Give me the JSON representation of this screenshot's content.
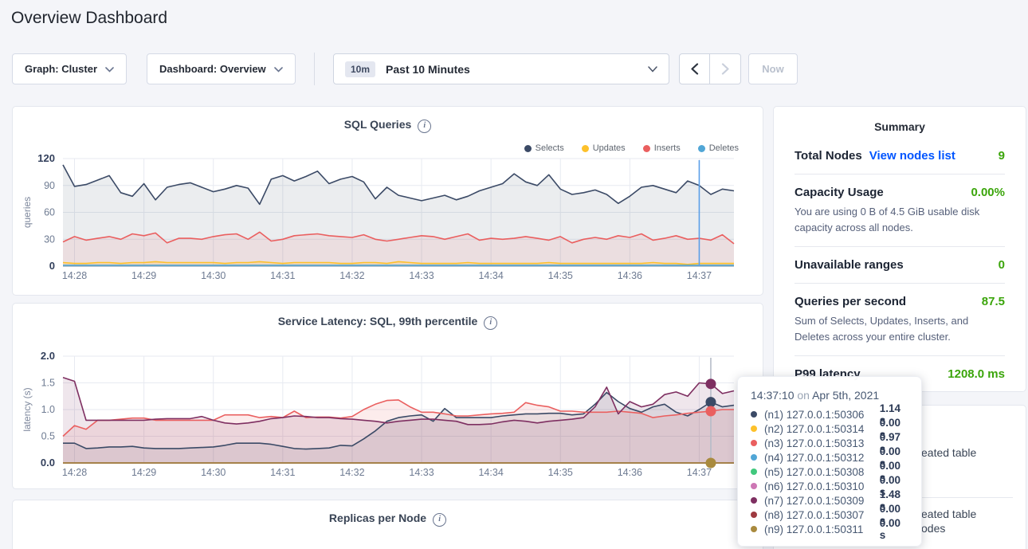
{
  "page": {
    "title": "Overview Dashboard"
  },
  "controls": {
    "graph_label": "Graph: Cluster",
    "dashboard_label": "Dashboard: Overview",
    "range_badge": "10m",
    "range_label": "Past 10 Minutes",
    "now_label": "Now"
  },
  "summary": {
    "title": "Summary",
    "total_nodes_label": "Total Nodes",
    "view_nodes_link": "View nodes list",
    "total_nodes_value": "9",
    "capacity_label": "Capacity Usage",
    "capacity_value": "0.00%",
    "capacity_desc": "You are using 0 B of 4.5 GiB usable disk capacity across all nodes.",
    "unavailable_label": "Unavailable ranges",
    "unavailable_value": "0",
    "qps_label": "Queries per second",
    "qps_value": "87.5",
    "qps_desc": "Sum of Selects, Updates, Inserts, and Deletes across your entire cluster.",
    "p99_label": "P99 latency",
    "p99_value": "1208.0 ms",
    "accent_green": "#3ba50b",
    "link_blue": "#0055ff"
  },
  "tooltip": {
    "time": "14:37:10",
    "conj": "on",
    "date": "Apr 5th, 2021",
    "rows": [
      {
        "color": "#3b4a66",
        "node": "(n1) 127.0.0.1:50306",
        "value": "1.14 s"
      },
      {
        "color": "#fdc12b",
        "node": "(n2) 127.0.0.1:50314",
        "value": "0.00 s"
      },
      {
        "color": "#ea5f5f",
        "node": "(n3) 127.0.0.1:50313",
        "value": "0.97 s"
      },
      {
        "color": "#51a6d6",
        "node": "(n4) 127.0.0.1:50312",
        "value": "0.00 s"
      },
      {
        "color": "#41c87d",
        "node": "(n5) 127.0.0.1:50308",
        "value": "0.00 s"
      },
      {
        "color": "#cd77b4",
        "node": "(n6) 127.0.0.1:50310",
        "value": "0.00 s"
      },
      {
        "color": "#7e2f61",
        "node": "(n7) 127.0.0.1:50309",
        "value": "1.48 s"
      },
      {
        "color": "#9e3a40",
        "node": "(n8) 127.0.0.1:50307",
        "value": "0.00 s"
      },
      {
        "color": "#a98a3e",
        "node": "(n9) 127.0.0.1:50311",
        "value": "0.00 s"
      }
    ]
  },
  "events": {
    "fragments": [
      "eated table",
      "eated table",
      "odes"
    ]
  },
  "chart_data": [
    {
      "type": "line",
      "title": "SQL Queries",
      "ylabel": "queries",
      "ylim": [
        0,
        120
      ],
      "yticks": [
        0,
        30,
        60,
        90,
        120
      ],
      "ytick_labels": [
        "0",
        "30",
        "60",
        "90",
        "120"
      ],
      "x_start": "14:27:50",
      "x_step_seconds": 10,
      "x_ticks": [
        {
          "i": 1,
          "label": "14:28"
        },
        {
          "i": 7,
          "label": "14:29"
        },
        {
          "i": 13,
          "label": "14:30"
        },
        {
          "i": 19,
          "label": "14:31"
        },
        {
          "i": 25,
          "label": "14:32"
        },
        {
          "i": 31,
          "label": "14:33"
        },
        {
          "i": 37,
          "label": "14:34"
        },
        {
          "i": 43,
          "label": "14:35"
        },
        {
          "i": 49,
          "label": "14:36"
        },
        {
          "i": 55,
          "label": "14:37"
        }
      ],
      "legend_position": "top-right",
      "grid": true,
      "cursor": {
        "index": 55,
        "color": "#5b9fe8"
      },
      "series": [
        {
          "name": "Selects",
          "color": "#3b4a66",
          "fill_opacity": 0.1,
          "values": [
            113,
            89,
            91,
            96,
            101,
            82,
            78,
            92,
            74,
            88,
            91,
            93,
            88,
            83,
            86,
            90,
            87,
            69,
            97,
            101,
            95,
            100,
            106,
            92,
            97,
            100,
            94,
            75,
            88,
            79,
            76,
            73,
            76,
            79,
            74,
            78,
            84,
            88,
            92,
            103,
            94,
            90,
            102,
            86,
            80,
            82,
            85,
            80,
            70,
            78,
            88,
            90,
            86,
            82,
            95,
            90,
            80,
            86,
            84
          ]
        },
        {
          "name": "Updates",
          "color": "#fdc12b",
          "fill_opacity": 0.2,
          "values": [
            4,
            3,
            3,
            4,
            4,
            3,
            4,
            4,
            5,
            4,
            4,
            4,
            4,
            4,
            3,
            4,
            4,
            5,
            4,
            3,
            4,
            4,
            4,
            4,
            3,
            3,
            4,
            4,
            3,
            5,
            4,
            3,
            3,
            3,
            3,
            4,
            3,
            3,
            3,
            3,
            3,
            3,
            4,
            3,
            3,
            3,
            3,
            3,
            3,
            3,
            3,
            4,
            3,
            3,
            2,
            3,
            3,
            3,
            3
          ]
        },
        {
          "name": "Inserts",
          "color": "#ea5f5f",
          "fill_opacity": 0.1,
          "values": [
            27,
            33,
            29,
            31,
            33,
            30,
            36,
            34,
            37,
            26,
            31,
            31,
            30,
            33,
            35,
            36,
            30,
            38,
            28,
            30,
            34,
            35,
            36,
            34,
            33,
            32,
            35,
            30,
            28,
            30,
            32,
            34,
            33,
            30,
            33,
            36,
            29,
            31,
            30,
            31,
            33,
            31,
            29,
            33,
            26,
            30,
            32,
            30,
            34,
            32,
            36,
            29,
            31,
            34,
            30,
            31,
            29,
            35,
            25
          ]
        },
        {
          "name": "Deletes",
          "color": "#51a6d6",
          "fill_opacity": 0,
          "flat": 1
        }
      ]
    },
    {
      "type": "line",
      "title": "Service Latency: SQL, 99th percentile",
      "ylabel": "latency (s)",
      "ylim": [
        0,
        2.0
      ],
      "yticks": [
        0,
        0.5,
        1.0,
        1.5,
        2.0
      ],
      "ytick_labels": [
        "0.0",
        "0.5",
        "1.0",
        "1.5",
        "2.0"
      ],
      "x_start": "14:27:50",
      "x_step_seconds": 10,
      "x_ticks": [
        {
          "i": 1,
          "label": "14:28"
        },
        {
          "i": 7,
          "label": "14:29"
        },
        {
          "i": 13,
          "label": "14:30"
        },
        {
          "i": 19,
          "label": "14:31"
        },
        {
          "i": 25,
          "label": "14:32"
        },
        {
          "i": 31,
          "label": "14:33"
        },
        {
          "i": 37,
          "label": "14:34"
        },
        {
          "i": 43,
          "label": "14:35"
        },
        {
          "i": 49,
          "label": "14:36"
        },
        {
          "i": 55,
          "label": "14:37"
        }
      ],
      "grid": true,
      "cursor": {
        "index": 56,
        "color": "#b6bcc8",
        "dots": [
          {
            "color": "#7e2f61",
            "value": 1.48
          },
          {
            "color": "#3b4a66",
            "value": 1.14
          },
          {
            "color": "#ea5f5f",
            "value": 0.97
          },
          {
            "color": "#a98a3e",
            "value": 0.0
          }
        ]
      },
      "series": [
        {
          "name": "(n1) 127.0.0.1:50306",
          "color": "#3b4a66",
          "fill_opacity": 0.1,
          "values": [
            0.37,
            0.37,
            0.27,
            0.28,
            0.3,
            0.3,
            0.31,
            0.28,
            0.27,
            0.27,
            0.27,
            0.28,
            0.29,
            0.3,
            0.33,
            0.37,
            0.37,
            0.37,
            0.35,
            0.31,
            0.27,
            0.26,
            0.27,
            0.28,
            0.33,
            0.32,
            0.45,
            0.6,
            0.78,
            0.85,
            0.88,
            0.9,
            0.78,
            1.02,
            0.85,
            0.85,
            0.85,
            0.85,
            0.88,
            0.9,
            0.92,
            0.92,
            0.93,
            0.93,
            0.9,
            0.92,
            1.1,
            1.32,
            1.15,
            1.02,
            0.95,
            1.05,
            1.1,
            0.95,
            0.88,
            1.0,
            1.14,
            1.05,
            1.08
          ]
        },
        {
          "name": "(n2) 127.0.0.1:50314",
          "color": "#fdc12b",
          "fill_opacity": 0,
          "flat": 0
        },
        {
          "name": "(n3) 127.0.0.1:50313",
          "color": "#ea5f5f",
          "fill_opacity": 0.12,
          "values": [
            0.5,
            0.7,
            0.63,
            0.8,
            0.8,
            0.82,
            0.84,
            0.84,
            0.8,
            0.8,
            0.8,
            0.8,
            0.8,
            0.8,
            0.9,
            0.9,
            0.9,
            0.85,
            0.87,
            0.85,
            0.97,
            0.85,
            0.86,
            0.86,
            0.84,
            0.87,
            1.0,
            1.1,
            1.17,
            1.18,
            1.05,
            0.95,
            0.95,
            0.92,
            0.88,
            0.88,
            0.9,
            0.92,
            0.93,
            0.95,
            1.13,
            1.08,
            1.05,
            0.97,
            0.97,
            0.95,
            0.95,
            0.95,
            0.97,
            0.95,
            0.93,
            0.85,
            0.88,
            0.9,
            0.93,
            0.95,
            0.97,
            1.0,
            1.0
          ]
        },
        {
          "name": "(n4) 127.0.0.1:50312",
          "color": "#51a6d6",
          "fill_opacity": 0,
          "flat": 0
        },
        {
          "name": "(n5) 127.0.0.1:50308",
          "color": "#41c87d",
          "fill_opacity": 0,
          "flat": 0
        },
        {
          "name": "(n6) 127.0.0.1:50310",
          "color": "#cd77b4",
          "fill_opacity": 0,
          "flat": 0
        },
        {
          "name": "(n7) 127.0.0.1:50309",
          "color": "#7e2f61",
          "fill_opacity": 0.12,
          "values": [
            1.6,
            1.53,
            0.8,
            0.8,
            0.8,
            0.8,
            0.8,
            0.8,
            0.82,
            0.83,
            0.83,
            0.83,
            0.87,
            0.8,
            0.75,
            0.73,
            0.75,
            0.78,
            0.83,
            0.85,
            0.88,
            0.87,
            0.85,
            0.85,
            0.83,
            0.82,
            0.8,
            0.78,
            0.75,
            0.78,
            0.8,
            0.82,
            0.82,
            0.8,
            0.78,
            0.72,
            0.72,
            0.73,
            0.77,
            0.8,
            0.78,
            0.75,
            0.78,
            0.8,
            0.82,
            0.85,
            1.05,
            1.42,
            0.92,
            1.15,
            1.05,
            1.1,
            1.28,
            1.33,
            1.25,
            1.5,
            1.48,
            1.3,
            1.35
          ]
        },
        {
          "name": "(n8) 127.0.0.1:50307",
          "color": "#9e3a40",
          "fill_opacity": 0,
          "flat": 0
        },
        {
          "name": "(n9) 127.0.0.1:50311",
          "color": "#a98a3e",
          "fill_opacity": 0,
          "flat": 0
        }
      ]
    },
    {
      "type": "line",
      "title": "Replicas per Node",
      "series": []
    }
  ]
}
